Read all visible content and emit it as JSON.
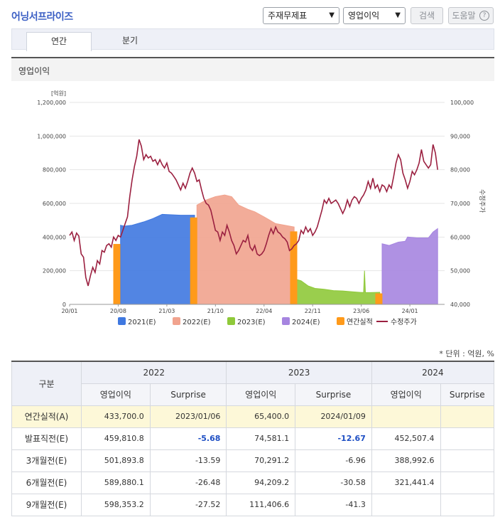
{
  "header": {
    "title": "어닝서프라이즈",
    "select_statement": "주재무제표",
    "select_item": "영업이익",
    "search_label": "검색",
    "help_label": "도움말",
    "help_icon": "question-circle-icon"
  },
  "tabs": [
    {
      "label": "연간",
      "active": true
    },
    {
      "label": "분기",
      "active": false
    }
  ],
  "section_title": "영업이익",
  "chart_data": {
    "type": "area",
    "left_unit": "[억원]",
    "right_label": "수정주가",
    "left_ticks": [
      "0",
      "200,000",
      "400,000",
      "600,000",
      "800,000",
      "1,000,000",
      "1,200,000"
    ],
    "right_ticks": [
      "40,000",
      "50,000",
      "60,000",
      "70,000",
      "80,000",
      "90,000",
      "100,000"
    ],
    "left_range": [
      0,
      1200000
    ],
    "right_range": [
      40000,
      100000
    ],
    "x_ticks": [
      "20/01",
      "20/08",
      "21/03",
      "21/10",
      "22/04",
      "22/11",
      "23/06",
      "24/01"
    ],
    "legend": [
      {
        "name": "2021(E)",
        "color": "#3f78e0"
      },
      {
        "name": "2022(E)",
        "color": "#f1a38e"
      },
      {
        "name": "2023(E)",
        "color": "#8fc93a"
      },
      {
        "name": "2024(E)",
        "color": "#a685e0"
      },
      {
        "name": "연간실적",
        "color": "#ff9a1a"
      },
      {
        "name": "수정주가",
        "color": "#9b2040"
      }
    ],
    "series": [
      {
        "name": "2021(E)",
        "color": "#3f78e0",
        "points": [
          [
            11.0,
            470000
          ],
          [
            11.8,
            465000
          ],
          [
            13.5,
            470000
          ],
          [
            16,
            490000
          ],
          [
            18,
            510000
          ],
          [
            20,
            535000
          ],
          [
            24,
            530000
          ],
          [
            27,
            530000
          ]
        ]
      },
      {
        "name": "2022(E)",
        "color": "#f1a38e",
        "points": [
          [
            27.5,
            590000
          ],
          [
            29.5,
            620000
          ],
          [
            31.5,
            640000
          ],
          [
            33.5,
            650000
          ],
          [
            35,
            640000
          ],
          [
            36.5,
            590000
          ],
          [
            38.5,
            565000
          ],
          [
            40,
            550000
          ],
          [
            42,
            520000
          ],
          [
            44.5,
            480000
          ],
          [
            46.5,
            470000
          ],
          [
            48.5,
            460000
          ]
        ]
      },
      {
        "name": "2023(E)",
        "color": "#8fc93a",
        "points": [
          [
            48.8,
            150000
          ],
          [
            50,
            140000
          ],
          [
            51.5,
            110000
          ],
          [
            53,
            95000
          ],
          [
            55,
            90000
          ],
          [
            57,
            82000
          ],
          [
            59,
            80000
          ],
          [
            61,
            75000
          ],
          [
            62.5,
            72000
          ],
          [
            63.5,
            70000
          ],
          [
            63.7,
            200000
          ],
          [
            63.9,
            70000
          ],
          [
            65,
            70000
          ],
          [
            67,
            72000
          ]
        ]
      },
      {
        "name": "2024(E)",
        "color": "#a685e0",
        "points": [
          [
            67.5,
            360000
          ],
          [
            69,
            350000
          ],
          [
            71,
            370000
          ],
          [
            72.5,
            375000
          ],
          [
            73,
            400000
          ],
          [
            75,
            395000
          ],
          [
            77.5,
            395000
          ],
          [
            78.5,
            430000
          ],
          [
            79.5,
            450000
          ]
        ]
      }
    ],
    "actual": [
      {
        "year": "2020",
        "x": 10.2,
        "value": 359000
      },
      {
        "year": "2021",
        "x": 26.8,
        "value": 516339
      },
      {
        "year": "2022",
        "x": 48.4,
        "value": 433700
      },
      {
        "year": "2023",
        "x": 66.8,
        "value": 65400
      }
    ],
    "price": [
      [
        0,
        60500
      ],
      [
        0.5,
        61500
      ],
      [
        1,
        59000
      ],
      [
        1.5,
        61200
      ],
      [
        2,
        60300
      ],
      [
        2.5,
        55000
      ],
      [
        3,
        54000
      ],
      [
        3.5,
        48000
      ],
      [
        4,
        45500
      ],
      [
        4.5,
        48500
      ],
      [
        5,
        51000
      ],
      [
        5.5,
        49500
      ],
      [
        6,
        53000
      ],
      [
        6.5,
        52000
      ],
      [
        7,
        56000
      ],
      [
        7.5,
        55500
      ],
      [
        8,
        57500
      ],
      [
        8.5,
        58000
      ],
      [
        9,
        57000
      ],
      [
        9.5,
        60000
      ],
      [
        10,
        59000
      ],
      [
        10.5,
        60500
      ],
      [
        11,
        60000
      ],
      [
        11.5,
        62000
      ],
      [
        12,
        64000
      ],
      [
        12.5,
        66000
      ],
      [
        13,
        72000
      ],
      [
        13.5,
        77000
      ],
      [
        14,
        81000
      ],
      [
        14.5,
        84000
      ],
      [
        15,
        89000
      ],
      [
        15.5,
        87000
      ],
      [
        16,
        83000
      ],
      [
        16.5,
        84500
      ],
      [
        17,
        83500
      ],
      [
        17.5,
        84000
      ],
      [
        18,
        82500
      ],
      [
        18.5,
        83000
      ],
      [
        19,
        81500
      ],
      [
        19.5,
        83000
      ],
      [
        20,
        81500
      ],
      [
        20.5,
        80500
      ],
      [
        21,
        82000
      ],
      [
        21.5,
        79500
      ],
      [
        22,
        79000
      ],
      [
        22.5,
        78000
      ],
      [
        23,
        77000
      ],
      [
        23.5,
        75500
      ],
      [
        24,
        74000
      ],
      [
        24.5,
        76000
      ],
      [
        25,
        74500
      ],
      [
        25.5,
        76500
      ],
      [
        26,
        79000
      ],
      [
        26.5,
        80500
      ],
      [
        27,
        79000
      ],
      [
        27.5,
        76500
      ],
      [
        28,
        77000
      ],
      [
        28.5,
        74000
      ],
      [
        29,
        71500
      ],
      [
        29.5,
        70000
      ],
      [
        30,
        69500
      ],
      [
        30.5,
        68000
      ],
      [
        31,
        65000
      ],
      [
        31.5,
        62000
      ],
      [
        32,
        61500
      ],
      [
        32.5,
        59000
      ],
      [
        33,
        61500
      ],
      [
        33.5,
        60500
      ],
      [
        34,
        63500
      ],
      [
        34.5,
        61500
      ],
      [
        35,
        59000
      ],
      [
        35.5,
        57500
      ],
      [
        36,
        55000
      ],
      [
        36.5,
        56000
      ],
      [
        37,
        57500
      ],
      [
        37.5,
        59000
      ],
      [
        38,
        58500
      ],
      [
        38.5,
        60500
      ],
      [
        39,
        57000
      ],
      [
        39.5,
        56000
      ],
      [
        40,
        57500
      ],
      [
        40.5,
        55000
      ],
      [
        41,
        54500
      ],
      [
        41.5,
        55000
      ],
      [
        42,
        56000
      ],
      [
        42.5,
        58000
      ],
      [
        43,
        60500
      ],
      [
        43.5,
        62500
      ],
      [
        44,
        61000
      ],
      [
        44.5,
        63000
      ],
      [
        45,
        61500
      ],
      [
        45.5,
        61000
      ],
      [
        46,
        60000
      ],
      [
        46.5,
        59500
      ],
      [
        47,
        58500
      ],
      [
        47.5,
        56000
      ],
      [
        48,
        56500
      ],
      [
        48.5,
        57500
      ],
      [
        49,
        58000
      ],
      [
        49.5,
        59000
      ],
      [
        50,
        62000
      ],
      [
        50.5,
        61000
      ],
      [
        51,
        63000
      ],
      [
        51.5,
        61500
      ],
      [
        52,
        62500
      ],
      [
        52.5,
        60500
      ],
      [
        53,
        61500
      ],
      [
        53.5,
        63000
      ],
      [
        54,
        65500
      ],
      [
        54.5,
        68000
      ],
      [
        55,
        71000
      ],
      [
        55.5,
        70000
      ],
      [
        56,
        71500
      ],
      [
        56.5,
        70000
      ],
      [
        57,
        70500
      ],
      [
        57.5,
        71000
      ],
      [
        58,
        70000
      ],
      [
        58.5,
        68500
      ],
      [
        59,
        67000
      ],
      [
        59.5,
        68500
      ],
      [
        60,
        71000
      ],
      [
        60.5,
        69000
      ],
      [
        61,
        71000
      ],
      [
        61.5,
        72000
      ],
      [
        62,
        71500
      ],
      [
        62.5,
        70000
      ],
      [
        63,
        71500
      ],
      [
        63.5,
        72500
      ],
      [
        64,
        74000
      ],
      [
        64.5,
        76500
      ],
      [
        65,
        74500
      ],
      [
        65.5,
        77500
      ],
      [
        66,
        74500
      ],
      [
        66.5,
        75500
      ],
      [
        67,
        73500
      ],
      [
        67.5,
        75500
      ],
      [
        68,
        75000
      ],
      [
        68.5,
        73500
      ],
      [
        69,
        75500
      ],
      [
        69.5,
        74500
      ],
      [
        70,
        78000
      ],
      [
        70.5,
        82000
      ],
      [
        71,
        84500
      ],
      [
        71.5,
        83000
      ],
      [
        72,
        79000
      ],
      [
        72.5,
        77000
      ],
      [
        73,
        74500
      ],
      [
        73.5,
        76500
      ],
      [
        74,
        79500
      ],
      [
        74.5,
        78500
      ],
      [
        75,
        80000
      ],
      [
        75.5,
        82000
      ],
      [
        76,
        86000
      ],
      [
        76.5,
        82500
      ],
      [
        77,
        81500
      ],
      [
        77.5,
        80500
      ],
      [
        78,
        81500
      ],
      [
        78.5,
        87500
      ],
      [
        79,
        85000
      ],
      [
        79.5,
        80000
      ]
    ]
  },
  "unit_note": "* 단위 : 억원, %",
  "table": {
    "corner": "구분",
    "years": [
      "2022",
      "2023",
      "2024"
    ],
    "sub_headers": [
      "영업이익",
      "Surprise",
      "영업이익",
      "Surprise",
      "영업이익",
      "Surprise"
    ],
    "rows": [
      {
        "label": "연간실적(A)",
        "cells": [
          "433,700.0",
          "2023/01/06",
          "65,400.0",
          "2024/01/09",
          "",
          ""
        ]
      },
      {
        "label": "발표직전(E)",
        "cells": [
          "459,810.8",
          "-5.68",
          "74,581.1",
          "-12.67",
          "452,507.4",
          ""
        ]
      },
      {
        "label": "3개월전(E)",
        "cells": [
          "501,893.8",
          "-13.59",
          "70,291.2",
          "-6.96",
          "388,992.6",
          ""
        ]
      },
      {
        "label": "6개월전(E)",
        "cells": [
          "589,880.1",
          "-26.48",
          "94,209.2",
          "-30.58",
          "321,441.4",
          ""
        ]
      },
      {
        "label": "9개월전(E)",
        "cells": [
          "598,353.2",
          "-27.52",
          "111,406.6",
          "-41.3",
          "",
          ""
        ]
      }
    ]
  }
}
